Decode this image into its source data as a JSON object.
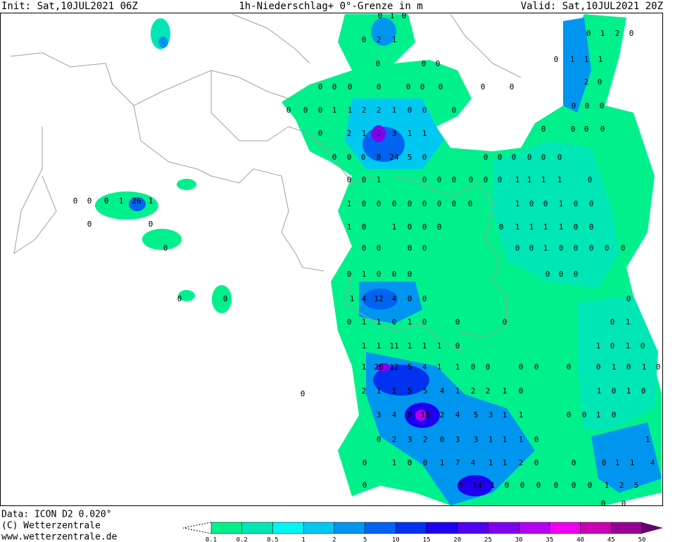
{
  "header": {
    "init": "Init: Sat,10JUL2021 06Z",
    "title": "1h-Niederschlag+ 0°-Grenze in m",
    "valid": "Valid: Sat,10JUL2021 20Z"
  },
  "footer": {
    "data": "Data: ICON D2 0.020°",
    "copyright": "(C) Wetterzentrale",
    "url": "www.wetterzentrale.de"
  },
  "colorbar": {
    "labels": [
      "0.1",
      "0.2",
      "0.5",
      "1",
      "2",
      "5",
      "10",
      "15",
      "20",
      "25",
      "30",
      "35",
      "40",
      "45",
      "50"
    ],
    "colors": [
      "#00f08c",
      "#00e6b4",
      "#00f5f5",
      "#00c8f0",
      "#0096f0",
      "#0064f0",
      "#0032f0",
      "#1e00f0",
      "#5000f0",
      "#8200f0",
      "#b400f0",
      "#f000f0",
      "#c800b4",
      "#960096"
    ]
  },
  "map_labels": [
    [
      "0",
      "1",
      "0"
    ],
    [
      "0",
      "2",
      "1"
    ],
    [
      "0",
      "1",
      "2",
      "0"
    ],
    [
      "0",
      "1",
      "1",
      "1"
    ],
    [
      "0",
      "0",
      "0"
    ],
    [
      "0",
      "0",
      "0",
      "0",
      "0",
      "0",
      "0",
      "0",
      "0"
    ],
    [
      "2",
      "0"
    ],
    [
      "0",
      "0",
      "0",
      "1",
      "1",
      "2",
      "2",
      "1",
      "0",
      "0",
      "0"
    ],
    [
      "0",
      "0",
      "0"
    ],
    [
      "0",
      "2",
      "1",
      "2",
      "3",
      "1",
      "1"
    ],
    [
      "0",
      "0",
      "0",
      "0"
    ],
    [
      "0",
      "0",
      "0",
      "8",
      "24",
      "5",
      "0",
      "0",
      "0",
      "0",
      "0",
      "0",
      "0"
    ],
    [
      "0",
      "0",
      "1",
      "0",
      "0",
      "0",
      "0",
      "0",
      "0",
      "1",
      "1",
      "1",
      "1",
      "0"
    ],
    [
      "0",
      "0",
      "0",
      "1",
      "26",
      "1"
    ],
    [
      "0",
      "0"
    ],
    [
      "1",
      "0",
      "0",
      "0",
      "0",
      "0",
      "0",
      "0",
      "0",
      "1",
      "0",
      "0",
      "1",
      "0",
      "0"
    ],
    [
      "1",
      "0",
      "1",
      "0",
      "0",
      "0",
      "0",
      "1",
      "1",
      "1",
      "1",
      "0",
      "0"
    ],
    [
      "0",
      "0",
      "0",
      "0",
      "0",
      "0",
      "0",
      "1",
      "0",
      "0",
      "0",
      "0",
      "0"
    ],
    [
      "0",
      "1",
      "0",
      "0",
      "0",
      "0",
      "0",
      "0"
    ],
    [
      "0",
      "0",
      "1",
      "4",
      "12",
      "4",
      "0",
      "0",
      "0"
    ],
    [
      "0",
      "1",
      "1",
      "0",
      "1",
      "0",
      "0",
      "0",
      "0",
      "1"
    ],
    [
      "1",
      "1",
      "11",
      "1",
      "1",
      "1",
      "0",
      "1",
      "0",
      "1",
      "0"
    ],
    [
      "1",
      "26",
      "12",
      "5",
      "4",
      "1",
      "1",
      "0",
      "0",
      "0",
      "0",
      "0",
      "0",
      "1",
      "0",
      "1",
      "0"
    ],
    [
      "2",
      "1",
      "1",
      "5",
      "5",
      "4",
      "1",
      "2",
      "2",
      "1",
      "0",
      "1",
      "0",
      "1",
      "0"
    ],
    [
      "3",
      "4",
      "0",
      "18",
      "2",
      "4",
      "5",
      "3",
      "1",
      "1",
      "0",
      "0",
      "1",
      "0"
    ],
    [
      "0",
      "2",
      "3",
      "2",
      "0",
      "3",
      "3",
      "1",
      "1",
      "1",
      "0",
      "1"
    ],
    [
      "0",
      "1",
      "0",
      "0",
      "1",
      "7",
      "4",
      "1",
      "1",
      "2",
      "0",
      "0",
      "0",
      "1",
      "1",
      "4"
    ],
    [
      "0",
      "5",
      "14",
      "1",
      "0",
      "0",
      "0",
      "0",
      "0",
      "0",
      "1",
      "2",
      "5"
    ],
    [
      "0",
      "0"
    ],
    [
      "0"
    ]
  ]
}
